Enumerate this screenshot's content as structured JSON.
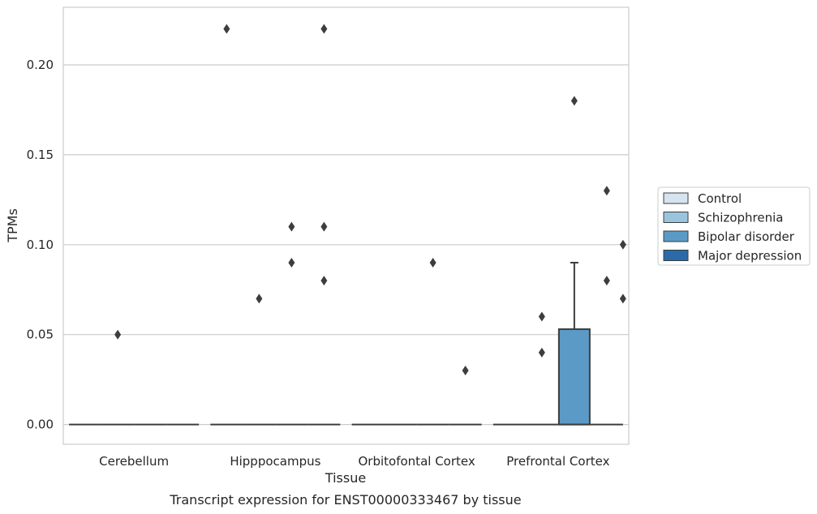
{
  "chart_data": {
    "type": "box",
    "caption": "Transcript expression for ENST00000333467 by tissue",
    "xlabel": "Tissue",
    "ylabel": "TPMs",
    "ylim": [
      -0.011,
      0.232
    ],
    "yticks": [
      0.0,
      0.05,
      0.1,
      0.15,
      0.2
    ],
    "ytick_labels": [
      "0.00",
      "0.05",
      "0.10",
      "0.15",
      "0.20"
    ],
    "grid": "horizontal",
    "legend_position": "right",
    "categories": [
      "Cerebellum",
      "Hipppocampus",
      "Orbitofontal Cortex",
      "Prefrontal Cortex"
    ],
    "series": [
      {
        "name": "Control",
        "color": "#d6e3f0",
        "boxes": [
          {
            "category": "Cerebellum",
            "q1": 0,
            "median": 0,
            "q3": 0,
            "whisker_low": 0,
            "whisker_high": 0,
            "outliers": []
          },
          {
            "category": "Hipppocampus",
            "q1": 0,
            "median": 0,
            "q3": 0,
            "whisker_low": 0,
            "whisker_high": 0,
            "outliers": [
              0.22
            ]
          },
          {
            "category": "Orbitofontal Cortex",
            "q1": 0,
            "median": 0,
            "q3": 0,
            "whisker_low": 0,
            "whisker_high": 0,
            "outliers": []
          },
          {
            "category": "Prefrontal Cortex",
            "q1": 0,
            "median": 0,
            "q3": 0,
            "whisker_low": 0,
            "whisker_high": 0,
            "outliers": []
          }
        ]
      },
      {
        "name": "Schizophrenia",
        "color": "#9ac4de",
        "boxes": [
          {
            "category": "Cerebellum",
            "q1": 0,
            "median": 0,
            "q3": 0,
            "whisker_low": 0,
            "whisker_high": 0,
            "outliers": [
              0.05
            ]
          },
          {
            "category": "Hipppocampus",
            "q1": 0,
            "median": 0,
            "q3": 0,
            "whisker_low": 0,
            "whisker_high": 0,
            "outliers": [
              0.07
            ]
          },
          {
            "category": "Orbitofontal Cortex",
            "q1": 0,
            "median": 0,
            "q3": 0,
            "whisker_low": 0,
            "whisker_high": 0,
            "outliers": []
          },
          {
            "category": "Prefrontal Cortex",
            "q1": 0,
            "median": 0,
            "q3": 0,
            "whisker_low": 0,
            "whisker_high": 0,
            "outliers": [
              0.04,
              0.06
            ]
          }
        ]
      },
      {
        "name": "Bipolar disorder",
        "color": "#5b9ac7",
        "boxes": [
          {
            "category": "Cerebellum",
            "q1": 0,
            "median": 0,
            "q3": 0,
            "whisker_low": 0,
            "whisker_high": 0,
            "outliers": []
          },
          {
            "category": "Hipppocampus",
            "q1": 0,
            "median": 0,
            "q3": 0,
            "whisker_low": 0,
            "whisker_high": 0,
            "outliers": [
              0.11,
              0.09
            ]
          },
          {
            "category": "Orbitofontal Cortex",
            "q1": 0,
            "median": 0,
            "q3": 0,
            "whisker_low": 0,
            "whisker_high": 0,
            "outliers": [
              0.09
            ]
          },
          {
            "category": "Prefrontal Cortex",
            "q1": 0,
            "median": 0,
            "q3": 0.053,
            "whisker_low": 0,
            "whisker_high": 0.09,
            "outliers": [
              0.18
            ]
          }
        ]
      },
      {
        "name": "Major depression",
        "color": "#2a6aa8",
        "boxes": [
          {
            "category": "Cerebellum",
            "q1": 0,
            "median": 0,
            "q3": 0,
            "whisker_low": 0,
            "whisker_high": 0,
            "outliers": []
          },
          {
            "category": "Hipppocampus",
            "q1": 0,
            "median": 0,
            "q3": 0,
            "whisker_low": 0,
            "whisker_high": 0,
            "outliers": [
              0.22,
              0.11,
              0.08
            ]
          },
          {
            "category": "Orbitofontal Cortex",
            "q1": 0,
            "median": 0,
            "q3": 0,
            "whisker_low": 0,
            "whisker_high": 0,
            "outliers": [
              0.03
            ]
          },
          {
            "category": "Prefrontal Cortex",
            "q1": 0,
            "median": 0,
            "q3": 0,
            "whisker_low": 0,
            "whisker_high": 0,
            "outliers": [
              0.13,
              0.08
            ]
          }
        ]
      }
    ],
    "prefrontal_extra_outliers": {
      "series": "Major depression",
      "values": [
        0.1,
        0.07
      ]
    }
  }
}
